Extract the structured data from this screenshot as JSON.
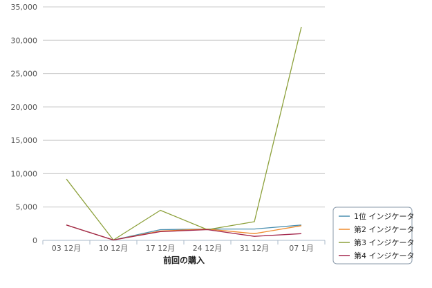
{
  "chart_data": {
    "type": "line",
    "title": "",
    "xlabel": "前回の購入",
    "ylabel": "",
    "categories": [
      "03  12月",
      "10  12月",
      "17  12月",
      "24  12月",
      "31  12月",
      "07  1月"
    ],
    "ylim": [
      0,
      35000
    ],
    "yticks": [
      0,
      5000,
      10000,
      15000,
      20000,
      25000,
      30000,
      35000
    ],
    "ytick_labels": [
      "0",
      "5,000",
      "10,000",
      "15,000",
      "20,000",
      "25,000",
      "30,000",
      "35,000"
    ],
    "grid": true,
    "legend_position": "bottom-right",
    "series": [
      {
        "name": "1位 インジケータ",
        "color": "#4a8fb0",
        "values": [
          2300,
          50,
          1600,
          1700,
          1700,
          2300
        ]
      },
      {
        "name": "第2 インジケータ",
        "color": "#ef8a2c",
        "values": [
          2300,
          50,
          1400,
          1700,
          1000,
          2200
        ]
      },
      {
        "name": "第3 インジケータ",
        "color": "#8ca03a",
        "values": [
          9200,
          50,
          4500,
          1600,
          2800,
          32000
        ]
      },
      {
        "name": "第4 インジケータ",
        "color": "#a3264c",
        "values": [
          2300,
          50,
          1300,
          1600,
          600,
          1000
        ]
      }
    ]
  }
}
